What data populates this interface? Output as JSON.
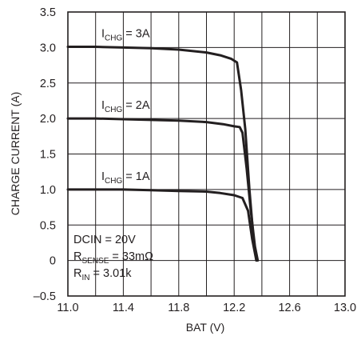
{
  "chart_data": {
    "type": "line",
    "xlabel": "BAT (V)",
    "ylabel": "CHARGE CURRENT (A)",
    "xlim": [
      11.0,
      13.0
    ],
    "ylim": [
      -0.5,
      3.5
    ],
    "x_ticks": [
      "11.0",
      "11.4",
      "11.8",
      "12.2",
      "12.6",
      "13.0"
    ],
    "y_ticks": [
      "3.5",
      "3.0",
      "2.5",
      "2.0",
      "1.5",
      "1.0",
      "0.5",
      "0",
      "–0.5"
    ],
    "x_grid_step": 0.2,
    "y_grid_step": 0.5,
    "grid": true,
    "line_color": "#231f20",
    "series": [
      {
        "label_main": "I",
        "label_sub": "CHG",
        "label_rest": " = 3A",
        "points": [
          [
            11.0,
            3.01
          ],
          [
            11.2,
            3.01
          ],
          [
            11.4,
            3.0
          ],
          [
            11.6,
            2.99
          ],
          [
            11.8,
            2.97
          ],
          [
            12.0,
            2.93
          ],
          [
            12.1,
            2.89
          ],
          [
            12.18,
            2.84
          ],
          [
            12.22,
            2.79
          ],
          [
            12.25,
            2.4
          ],
          [
            12.28,
            1.85
          ],
          [
            12.31,
            1.0
          ],
          [
            12.34,
            0.3
          ],
          [
            12.36,
            0.0
          ]
        ]
      },
      {
        "label_main": "I",
        "label_sub": "CHG",
        "label_rest": " = 2A",
        "points": [
          [
            11.0,
            2.0
          ],
          [
            11.2,
            2.0
          ],
          [
            11.4,
            1.99
          ],
          [
            11.6,
            1.98
          ],
          [
            11.8,
            1.97
          ],
          [
            12.0,
            1.95
          ],
          [
            12.12,
            1.92
          ],
          [
            12.2,
            1.89
          ],
          [
            12.24,
            1.88
          ],
          [
            12.26,
            1.8
          ],
          [
            12.29,
            1.3
          ],
          [
            12.32,
            0.7
          ],
          [
            12.35,
            0.2
          ],
          [
            12.37,
            0.0
          ]
        ]
      },
      {
        "label_main": "I",
        "label_sub": "CHG",
        "label_rest": " = 1A",
        "points": [
          [
            11.0,
            1.0
          ],
          [
            11.2,
            1.0
          ],
          [
            11.4,
            1.0
          ],
          [
            11.6,
            0.99
          ],
          [
            11.8,
            0.98
          ],
          [
            12.0,
            0.97
          ],
          [
            12.1,
            0.95
          ],
          [
            12.2,
            0.92
          ],
          [
            12.26,
            0.88
          ],
          [
            12.3,
            0.7
          ],
          [
            12.33,
            0.3
          ],
          [
            12.36,
            0.0
          ]
        ]
      }
    ],
    "conditions": [
      {
        "main": "DCIN = 20V",
        "sub": "",
        "rest": ""
      },
      {
        "main": "R",
        "sub": "SENSE",
        "rest": " = 33mΩ"
      },
      {
        "main": "R",
        "sub": "IN",
        "rest": " = 3.01k"
      }
    ]
  }
}
